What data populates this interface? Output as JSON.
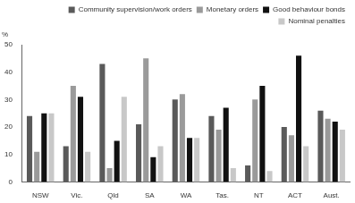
{
  "chart_data": {
    "type": "bar",
    "y_label": "%",
    "categories": [
      "NSW",
      "Vic.",
      "Qld",
      "SA",
      "WA",
      "Tas.",
      "NT",
      "ACT",
      "Aust."
    ],
    "series": [
      {
        "name": "Community supervision/work orders",
        "color": "#5a5a5a",
        "values": [
          24,
          13,
          43,
          21,
          30,
          24,
          6,
          20,
          26
        ]
      },
      {
        "name": "Monetary orders",
        "color": "#9a9a9a",
        "values": [
          11,
          35,
          5,
          45,
          32,
          19,
          30,
          17,
          23
        ]
      },
      {
        "name": "Good behaviour bonds",
        "color": "#111111",
        "values": [
          25,
          31,
          15,
          9,
          16,
          27,
          35,
          46,
          22
        ]
      },
      {
        "name": "Nominal penalties",
        "color": "#c8c8c8",
        "values": [
          25,
          11,
          31,
          13,
          16,
          5,
          4,
          13,
          19
        ]
      }
    ],
    "ylim": [
      0,
      50
    ],
    "yticks": [
      0,
      10,
      20,
      30,
      40,
      50
    ],
    "grid": false,
    "legend": "top"
  }
}
